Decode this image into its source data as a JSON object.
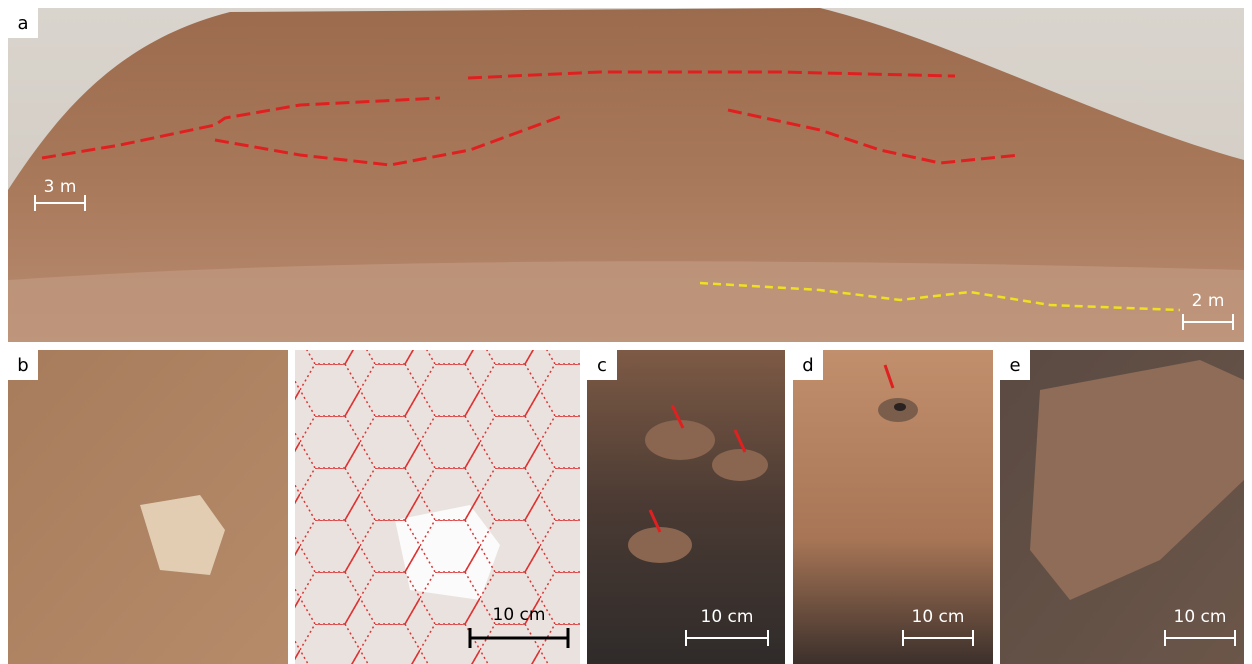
{
  "panels": [
    {
      "label": "a",
      "scale_bars": [
        "3 m",
        "2 m"
      ]
    },
    {
      "label": "b",
      "scale_bars": [
        "10 cm"
      ]
    },
    {
      "label": "c",
      "scale_bars": [
        "10 cm"
      ]
    },
    {
      "label": "d",
      "scale_bars": [
        "10 cm"
      ]
    },
    {
      "label": "e",
      "scale_bars": [
        "10 cm"
      ]
    }
  ]
}
